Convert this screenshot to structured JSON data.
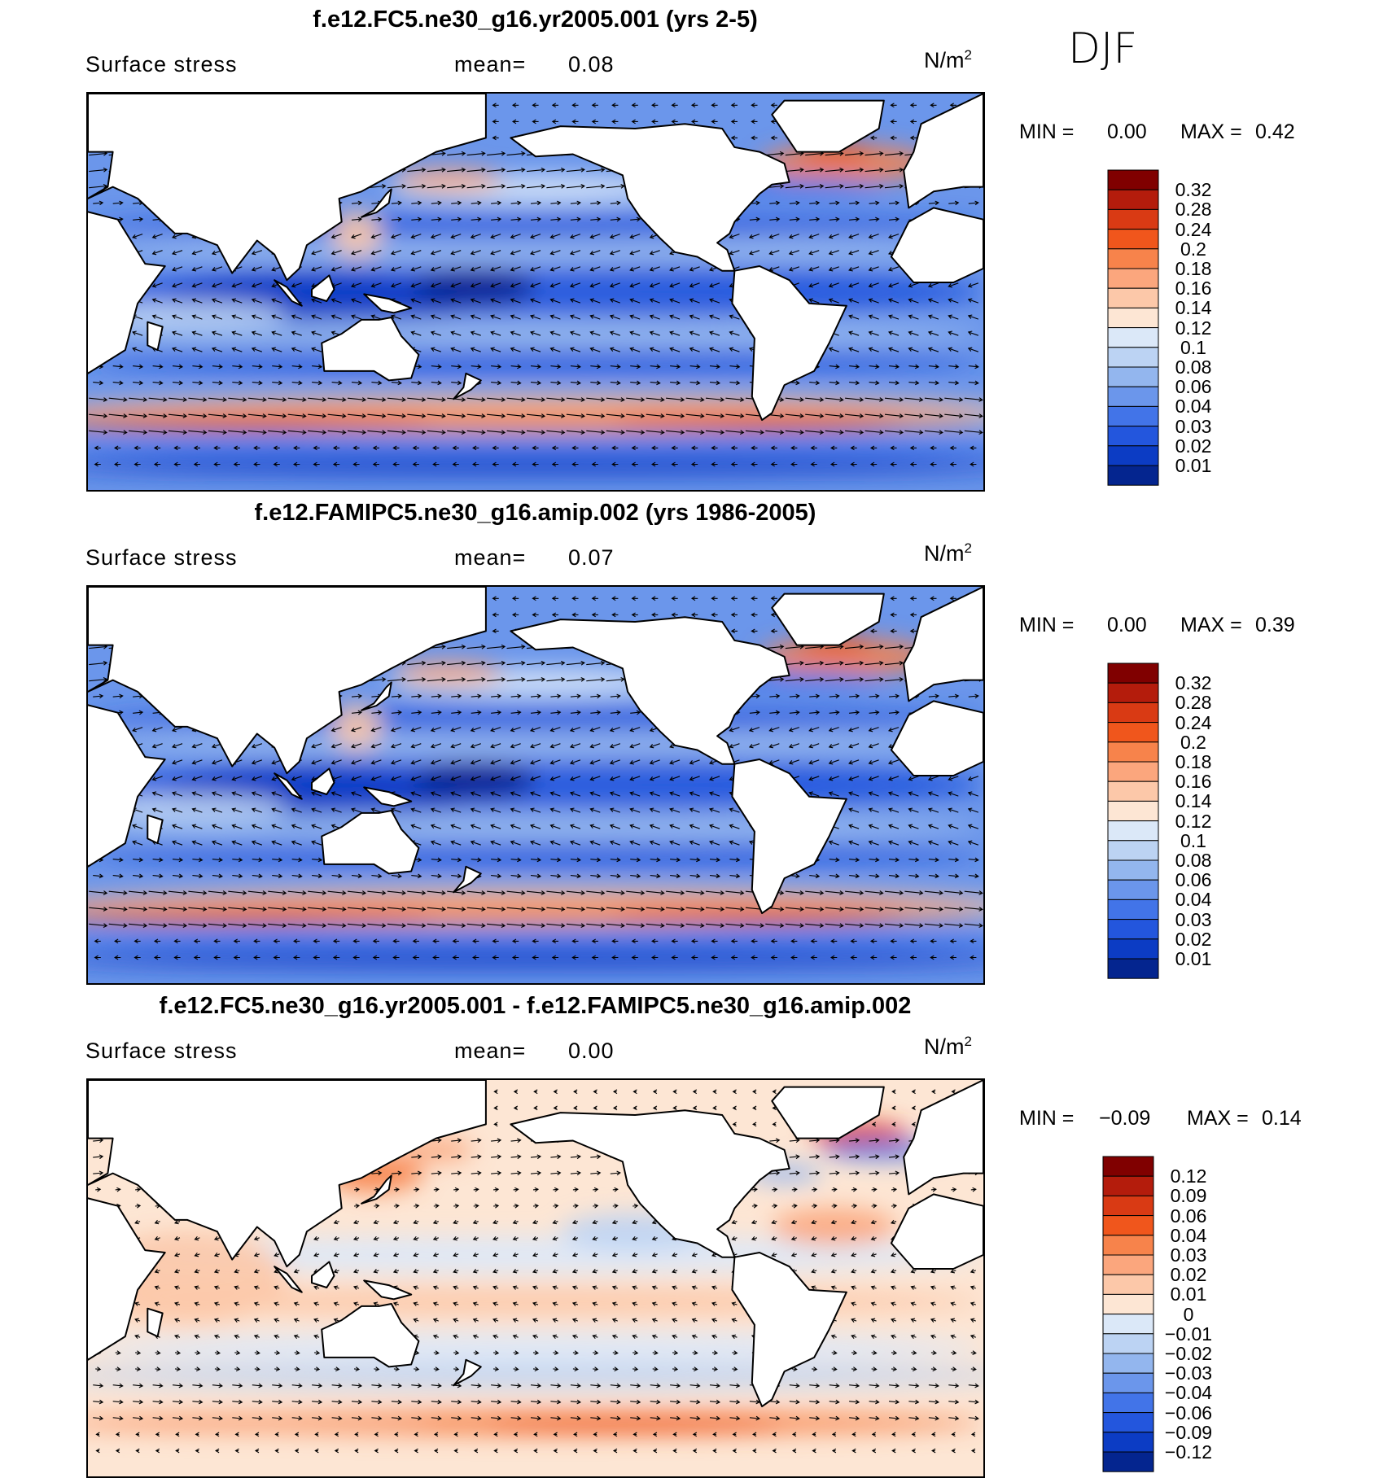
{
  "season": "DJF",
  "panels": [
    {
      "title": "f.e12.FC5.ne30_g16.yr2005.001 (yrs 2-5)",
      "variable": "Surface stress",
      "mean_label": "mean=",
      "mean_value": "0.08",
      "units": "N/m",
      "units_sup": "2",
      "min_label": "MIN =",
      "min_value": "0.00",
      "max_label": "MAX =",
      "max_value": "0.42",
      "colorbar": {
        "levels": [
          "0.32",
          "0.28",
          "0.24",
          "0.2",
          "0.18",
          "0.16",
          "0.14",
          "0.12",
          "0.1",
          "0.08",
          "0.06",
          "0.04",
          "0.03",
          "0.02",
          "0.01"
        ],
        "colors": [
          "#800000",
          "#b41c0c",
          "#d93a14",
          "#f0561c",
          "#f7834b",
          "#fba67d",
          "#fcc8a9",
          "#fde6d4",
          "#dbe8f8",
          "#bcd3f3",
          "#93b6ee",
          "#6b96eb",
          "#4274e8",
          "#2356dd",
          "#0c3cc4",
          "#04258f"
        ]
      },
      "field_style": "absolute"
    },
    {
      "title": "f.e12.FAMIPC5.ne30_g16.amip.002 (yrs 1986-2005)",
      "variable": "Surface stress",
      "mean_label": "mean=",
      "mean_value": "0.07",
      "units": "N/m",
      "units_sup": "2",
      "min_label": "MIN =",
      "min_value": "0.00",
      "max_label": "MAX =",
      "max_value": "0.39",
      "colorbar": {
        "levels": [
          "0.32",
          "0.28",
          "0.24",
          "0.2",
          "0.18",
          "0.16",
          "0.14",
          "0.12",
          "0.1",
          "0.08",
          "0.06",
          "0.04",
          "0.03",
          "0.02",
          "0.01"
        ],
        "colors": [
          "#800000",
          "#b41c0c",
          "#d93a14",
          "#f0561c",
          "#f7834b",
          "#fba67d",
          "#fcc8a9",
          "#fde6d4",
          "#dbe8f8",
          "#bcd3f3",
          "#93b6ee",
          "#6b96eb",
          "#4274e8",
          "#2356dd",
          "#0c3cc4",
          "#04258f"
        ]
      },
      "field_style": "absolute"
    },
    {
      "title": "f.e12.FC5.ne30_g16.yr2005.001 - f.e12.FAMIPC5.ne30_g16.amip.002",
      "variable": "Surface stress",
      "mean_label": "mean=",
      "mean_value": "0.00",
      "units": "N/m",
      "units_sup": "2",
      "min_label": "MIN =",
      "min_value": "−0.09",
      "max_label": "MAX =",
      "max_value": "0.14",
      "colorbar": {
        "levels": [
          "0.12",
          "0.09",
          "0.06",
          "0.04",
          "0.03",
          "0.02",
          "0.01",
          "0",
          "−0.01",
          "−0.02",
          "−0.03",
          "−0.04",
          "−0.06",
          "−0.09",
          "−0.12"
        ],
        "colors": [
          "#800000",
          "#b41c0c",
          "#d93a14",
          "#f0561c",
          "#f7834b",
          "#fba67d",
          "#fcc8a9",
          "#fde6d4",
          "#dbe8f8",
          "#bcd3f3",
          "#93b6ee",
          "#6b96eb",
          "#4274e8",
          "#2356dd",
          "#0c3cc4",
          "#04258f"
        ]
      },
      "field_style": "difference"
    }
  ],
  "chart_data": [
    {
      "type": "heatmap",
      "title": "f.e12.FC5.ne30_g16.yr2005.001 (yrs 2-5)",
      "variable": "Surface stress",
      "units": "N/m2",
      "mean": 0.08,
      "min": 0.0,
      "max": 0.42,
      "season": "DJF",
      "contour_levels": [
        0.01,
        0.02,
        0.03,
        0.04,
        0.06,
        0.08,
        0.1,
        0.12,
        0.14,
        0.16,
        0.18,
        0.2,
        0.24,
        0.28,
        0.32
      ],
      "overlay": "vector arrows (wind stress direction)"
    },
    {
      "type": "heatmap",
      "title": "f.e12.FAMIPC5.ne30_g16.amip.002 (yrs 1986-2005)",
      "variable": "Surface stress",
      "units": "N/m2",
      "mean": 0.07,
      "min": 0.0,
      "max": 0.39,
      "season": "DJF",
      "contour_levels": [
        0.01,
        0.02,
        0.03,
        0.04,
        0.06,
        0.08,
        0.1,
        0.12,
        0.14,
        0.16,
        0.18,
        0.2,
        0.24,
        0.28,
        0.32
      ],
      "overlay": "vector arrows (wind stress direction)"
    },
    {
      "type": "heatmap",
      "title": "f.e12.FC5.ne30_g16.yr2005.001 - f.e12.FAMIPC5.ne30_g16.amip.002",
      "variable": "Surface stress",
      "units": "N/m2",
      "mean": 0.0,
      "min": -0.09,
      "max": 0.14,
      "season": "DJF",
      "contour_levels": [
        -0.12,
        -0.09,
        -0.06,
        -0.04,
        -0.03,
        -0.02,
        -0.01,
        0,
        0.01,
        0.02,
        0.03,
        0.04,
        0.06,
        0.09,
        0.12
      ],
      "overlay": "vector arrows (wind stress difference)"
    }
  ]
}
